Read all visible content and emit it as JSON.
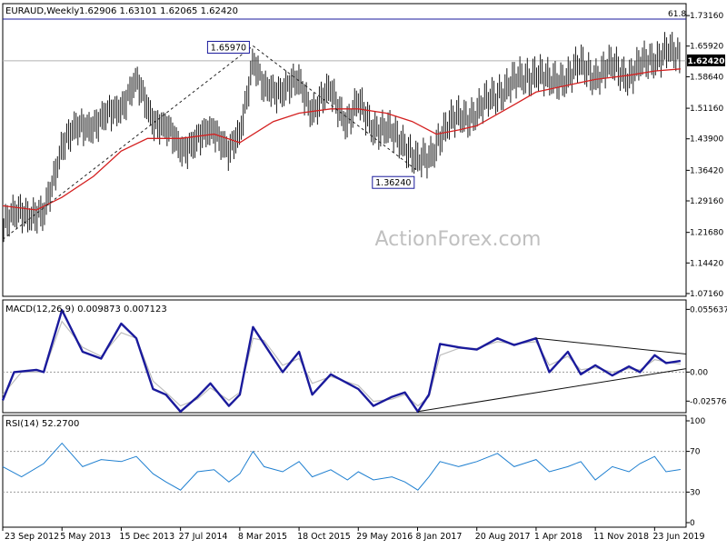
{
  "chart_data": [
    {
      "type": "line",
      "panel": "price",
      "header": {
        "symbol_label": "EURAUD,Weekly",
        "ohlc_text": "1.62906 1.63101 1.62065 1.62420"
      },
      "watermark": "ActionForex.com",
      "price_axis": {
        "ticks": [
          "1.73160",
          "1.65920",
          "1.58640",
          "1.51160",
          "1.43900",
          "1.36420",
          "1.29160",
          "1.21680",
          "1.14420",
          "1.07160"
        ],
        "ylim": [
          1.065,
          1.76
        ],
        "current_price_label": "1.62420",
        "current_price": 1.6242
      },
      "fib_level": {
        "label": "61.8",
        "price": 1.77
      },
      "annotations": [
        {
          "text": "1.65970",
          "price": 1.6597,
          "date": "2015-04-27"
        },
        {
          "text": "1.36240",
          "price": 1.3624,
          "date": "2017-01-09"
        }
      ],
      "trendlines": [
        {
          "style": "dashed",
          "from": {
            "date": "2012-09-23",
            "price": 1.1999
          },
          "to": {
            "date": "2015-04-27",
            "price": 1.6597
          }
        },
        {
          "style": "dashed",
          "from": {
            "date": "2015-04-27",
            "price": 1.6597
          },
          "to": {
            "date": "2017-01-09",
            "price": 1.3624
          }
        }
      ],
      "series": [
        {
          "name": "",
          "color": "#1a1a1a",
          "style": "ohlc-bars",
          "points": [
            [
              "2012-09-23",
              1.23
            ],
            [
              "2012-12-03",
              1.27
            ],
            [
              "2013-02-25",
              1.25
            ],
            [
              "2013-05-05",
              1.43
            ],
            [
              "2013-07-22",
              1.47
            ],
            [
              "2013-09-30",
              1.48
            ],
            [
              "2013-12-15",
              1.52
            ],
            [
              "2014-02-10",
              1.57
            ],
            [
              "2014-04-14",
              1.49
            ],
            [
              "2014-06-02",
              1.46
            ],
            [
              "2014-07-27",
              1.42
            ],
            [
              "2014-09-29",
              1.43
            ],
            [
              "2014-12-01",
              1.47
            ],
            [
              "2015-01-26",
              1.4
            ],
            [
              "2015-03-08",
              1.45
            ],
            [
              "2015-04-27",
              1.63
            ],
            [
              "2015-06-08",
              1.55
            ],
            [
              "2015-08-17",
              1.56
            ],
            [
              "2015-10-18",
              1.57
            ],
            [
              "2015-12-07",
              1.51
            ],
            [
              "2016-02-15",
              1.55
            ],
            [
              "2016-04-18",
              1.48
            ],
            [
              "2016-05-29",
              1.52
            ],
            [
              "2016-07-25",
              1.47
            ],
            [
              "2016-10-03",
              1.45
            ],
            [
              "2016-11-21",
              1.43
            ],
            [
              "2017-01-09",
              1.38
            ],
            [
              "2017-02-20",
              1.39
            ],
            [
              "2017-04-03",
              1.45
            ],
            [
              "2017-06-12",
              1.49
            ],
            [
              "2017-08-20",
              1.5
            ],
            [
              "2017-11-06",
              1.55
            ],
            [
              "2018-01-08",
              1.57
            ],
            [
              "2018-04-01",
              1.6
            ],
            [
              "2018-05-21",
              1.57
            ],
            [
              "2018-07-30",
              1.59
            ],
            [
              "2018-09-17",
              1.61
            ],
            [
              "2018-11-11",
              1.59
            ],
            [
              "2019-01-14",
              1.61
            ],
            [
              "2019-03-18",
              1.59
            ],
            [
              "2019-04-29",
              1.61
            ],
            [
              "2019-06-23",
              1.63
            ],
            [
              "2019-08-05",
              1.65
            ],
            [
              "2019-09-29",
              1.624
            ]
          ]
        },
        {
          "name": "",
          "color": "#d42020",
          "style": "moving-average",
          "points": [
            [
              "2012-09-23",
              1.28
            ],
            [
              "2013-01-28",
              1.27
            ],
            [
              "2013-05-05",
              1.3
            ],
            [
              "2013-09-01",
              1.35
            ],
            [
              "2013-12-15",
              1.41
            ],
            [
              "2014-03-24",
              1.44
            ],
            [
              "2014-07-27",
              1.44
            ],
            [
              "2014-12-01",
              1.45
            ],
            [
              "2015-03-08",
              1.43
            ],
            [
              "2015-07-13",
              1.48
            ],
            [
              "2015-10-18",
              1.5
            ],
            [
              "2016-02-15",
              1.51
            ],
            [
              "2016-05-29",
              1.51
            ],
            [
              "2016-09-12",
              1.5
            ],
            [
              "2016-12-19",
              1.48
            ],
            [
              "2017-03-20",
              1.45
            ],
            [
              "2017-06-12",
              1.46
            ],
            [
              "2017-08-20",
              1.47
            ],
            [
              "2018-01-08",
              1.52
            ],
            [
              "2018-04-01",
              1.55
            ],
            [
              "2018-08-27",
              1.57
            ],
            [
              "2018-11-11",
              1.58
            ],
            [
              "2019-03-18",
              1.59
            ],
            [
              "2019-06-23",
              1.6
            ],
            [
              "2019-09-29",
              1.605
            ]
          ]
        }
      ],
      "x_axis": {
        "tick_labels": [
          "23 Sep 2012",
          "5 May 2013",
          "15 Dec 2013",
          "27 Jul 2014",
          "8 Mar 2015",
          "18 Oct 2015",
          "29 May 2016",
          "8 Jan 2017",
          "20 Aug 2017",
          "1 Apr 2018",
          "11 Nov 2018",
          "23 Jun 2019"
        ],
        "tick_dates": [
          "2012-09-23",
          "2013-05-05",
          "2013-12-15",
          "2014-07-27",
          "2015-03-08",
          "2015-10-18",
          "2016-05-29",
          "2017-01-08",
          "2017-08-20",
          "2018-04-01",
          "2018-11-11",
          "2019-06-23"
        ],
        "xlim": [
          "2012-09-23",
          "2019-10-20"
        ]
      }
    },
    {
      "type": "line",
      "panel": "macd",
      "header": {
        "label": "MACD(12,26,9) 0.009873 0.007123"
      },
      "axis": {
        "ticks": [
          "0.055637",
          "0.00",
          "-0.02576"
        ],
        "ylim": [
          -0.036,
          0.064
        ],
        "zero_value": 0.0
      },
      "series": [
        {
          "name": "",
          "color": "#1a1a9c",
          "style": "bold-line",
          "points": [
            [
              "2012-09-23",
              -0.025
            ],
            [
              "2012-11-05",
              0.0
            ],
            [
              "2013-01-28",
              0.002
            ],
            [
              "2013-02-25",
              0.0
            ],
            [
              "2013-05-05",
              0.055
            ],
            [
              "2013-07-22",
              0.018
            ],
            [
              "2013-09-30",
              0.012
            ],
            [
              "2013-12-15",
              0.043
            ],
            [
              "2014-02-10",
              0.03
            ],
            [
              "2014-04-14",
              -0.015
            ],
            [
              "2014-06-02",
              -0.02
            ],
            [
              "2014-07-27",
              -0.035
            ],
            [
              "2014-09-29",
              -0.022
            ],
            [
              "2014-11-17",
              -0.01
            ],
            [
              "2015-01-26",
              -0.03
            ],
            [
              "2015-03-08",
              -0.02
            ],
            [
              "2015-04-27",
              0.04
            ],
            [
              "2015-06-08",
              0.025
            ],
            [
              "2015-08-17",
              0.0
            ],
            [
              "2015-10-18",
              0.018
            ],
            [
              "2015-12-07",
              -0.02
            ],
            [
              "2016-02-15",
              -0.002
            ],
            [
              "2016-05-29",
              -0.015
            ],
            [
              "2016-07-25",
              -0.03
            ],
            [
              "2016-10-03",
              -0.022
            ],
            [
              "2016-11-21",
              -0.018
            ],
            [
              "2017-01-09",
              -0.035
            ],
            [
              "2017-02-20",
              -0.02
            ],
            [
              "2017-04-03",
              0.025
            ],
            [
              "2017-06-12",
              0.022
            ],
            [
              "2017-08-20",
              0.02
            ],
            [
              "2017-11-06",
              0.03
            ],
            [
              "2018-01-08",
              0.024
            ],
            [
              "2018-04-01",
              0.03
            ],
            [
              "2018-05-21",
              0.0
            ],
            [
              "2018-07-30",
              0.018
            ],
            [
              "2018-09-17",
              -0.002
            ],
            [
              "2018-11-11",
              0.006
            ],
            [
              "2019-01-14",
              -0.003
            ],
            [
              "2019-03-18",
              0.005
            ],
            [
              "2019-04-29",
              0.0
            ],
            [
              "2019-06-23",
              0.015
            ],
            [
              "2019-08-05",
              0.008
            ],
            [
              "2019-09-29",
              0.0099
            ]
          ]
        },
        {
          "name": "",
          "color": "#bdbdbd",
          "style": "thin-line",
          "points": [
            [
              "2012-09-23",
              -0.02
            ],
            [
              "2012-12-03",
              0.0
            ],
            [
              "2013-02-25",
              0.0
            ],
            [
              "2013-05-05",
              0.045
            ],
            [
              "2013-07-22",
              0.022
            ],
            [
              "2013-09-30",
              0.014
            ],
            [
              "2013-12-15",
              0.035
            ],
            [
              "2014-02-10",
              0.03
            ],
            [
              "2014-04-14",
              -0.008
            ],
            [
              "2014-06-02",
              -0.018
            ],
            [
              "2014-07-27",
              -0.03
            ],
            [
              "2014-09-29",
              -0.024
            ],
            [
              "2014-11-17",
              -0.014
            ],
            [
              "2015-01-26",
              -0.025
            ],
            [
              "2015-03-08",
              -0.018
            ],
            [
              "2015-04-27",
              0.03
            ],
            [
              "2015-06-08",
              0.028
            ],
            [
              "2015-08-17",
              0.006
            ],
            [
              "2015-10-18",
              0.012
            ],
            [
              "2015-12-07",
              -0.01
            ],
            [
              "2016-02-15",
              -0.004
            ],
            [
              "2016-05-29",
              -0.012
            ],
            [
              "2016-07-25",
              -0.026
            ],
            [
              "2016-10-03",
              -0.024
            ],
            [
              "2016-11-21",
              -0.02
            ],
            [
              "2017-01-09",
              -0.03
            ],
            [
              "2017-02-20",
              -0.022
            ],
            [
              "2017-04-03",
              0.015
            ],
            [
              "2017-06-12",
              0.021
            ],
            [
              "2017-08-20",
              0.021
            ],
            [
              "2017-11-06",
              0.027
            ],
            [
              "2018-01-08",
              0.025
            ],
            [
              "2018-04-01",
              0.027
            ],
            [
              "2018-05-21",
              0.006
            ],
            [
              "2018-07-30",
              0.014
            ],
            [
              "2018-09-17",
              0.002
            ],
            [
              "2018-11-11",
              0.004
            ],
            [
              "2019-01-14",
              0.0
            ],
            [
              "2019-03-18",
              0.003
            ],
            [
              "2019-04-29",
              0.002
            ],
            [
              "2019-06-23",
              0.011
            ],
            [
              "2019-08-05",
              0.009
            ],
            [
              "2019-09-29",
              0.0071
            ]
          ]
        }
      ],
      "trendlines": [
        {
          "style": "solid",
          "from": {
            "date": "2018-04-01",
            "value": 0.03
          },
          "to": {
            "date": "2019-10-20",
            "value": 0.016
          }
        },
        {
          "style": "solid",
          "from": {
            "date": "2017-01-09",
            "value": -0.035
          },
          "to": {
            "date": "2019-10-20",
            "value": 0.003
          }
        }
      ]
    },
    {
      "type": "line",
      "panel": "rsi",
      "header": {
        "label": "RSI(14) 52.2700"
      },
      "axis": {
        "ticks": [
          "100",
          "70",
          "30",
          "0"
        ],
        "ylim": [
          0,
          100
        ],
        "levels": [
          70,
          30
        ]
      },
      "series": [
        {
          "name": "",
          "color": "#1e7fd0",
          "style": "line",
          "points": [
            [
              "2012-09-23",
              55
            ],
            [
              "2012-12-03",
              45
            ],
            [
              "2013-02-25",
              58
            ],
            [
              "2013-05-05",
              78
            ],
            [
              "2013-07-22",
              55
            ],
            [
              "2013-09-30",
              62
            ],
            [
              "2013-12-15",
              60
            ],
            [
              "2014-02-10",
              65
            ],
            [
              "2014-04-14",
              48
            ],
            [
              "2014-06-02",
              40
            ],
            [
              "2014-07-27",
              32
            ],
            [
              "2014-09-29",
              50
            ],
            [
              "2014-12-01",
              52
            ],
            [
              "2015-01-26",
              40
            ],
            [
              "2015-03-08",
              48
            ],
            [
              "2015-04-27",
              70
            ],
            [
              "2015-06-08",
              55
            ],
            [
              "2015-08-17",
              50
            ],
            [
              "2015-10-18",
              60
            ],
            [
              "2015-12-07",
              45
            ],
            [
              "2016-02-15",
              52
            ],
            [
              "2016-04-18",
              42
            ],
            [
              "2016-05-29",
              50
            ],
            [
              "2016-07-25",
              42
            ],
            [
              "2016-10-03",
              45
            ],
            [
              "2016-11-21",
              40
            ],
            [
              "2017-01-09",
              32
            ],
            [
              "2017-02-20",
              45
            ],
            [
              "2017-04-03",
              60
            ],
            [
              "2017-06-12",
              55
            ],
            [
              "2017-08-20",
              60
            ],
            [
              "2017-11-06",
              68
            ],
            [
              "2018-01-08",
              55
            ],
            [
              "2018-04-01",
              62
            ],
            [
              "2018-05-21",
              50
            ],
            [
              "2018-07-30",
              55
            ],
            [
              "2018-09-17",
              60
            ],
            [
              "2018-11-11",
              42
            ],
            [
              "2019-01-14",
              55
            ],
            [
              "2019-03-18",
              50
            ],
            [
              "2019-04-29",
              58
            ],
            [
              "2019-06-23",
              65
            ],
            [
              "2019-08-05",
              50
            ],
            [
              "2019-09-29",
              52.27
            ]
          ]
        }
      ]
    }
  ]
}
